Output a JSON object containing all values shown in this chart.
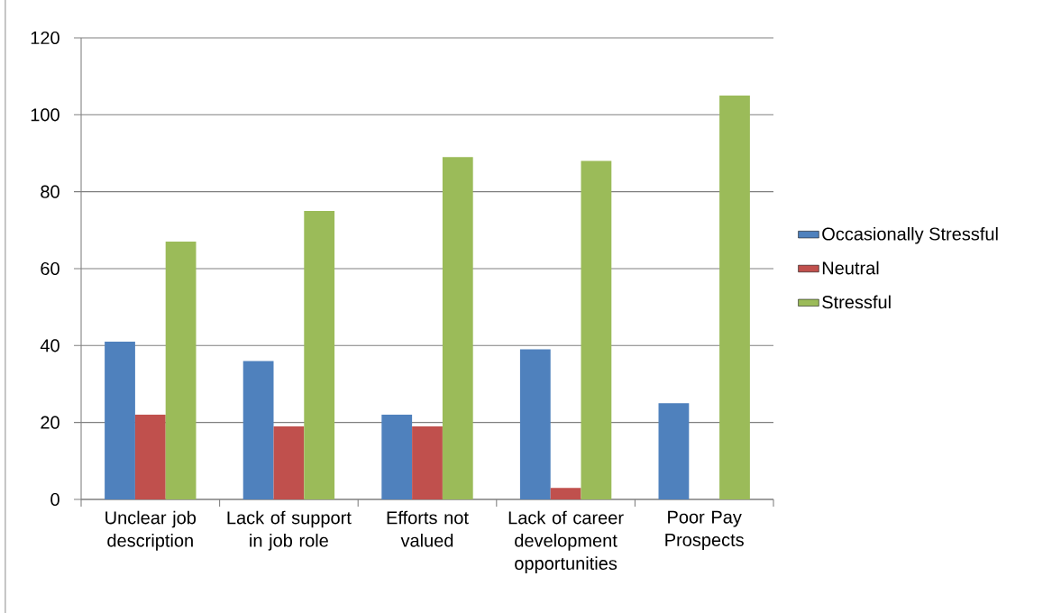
{
  "chart_data": {
    "type": "bar",
    "categories": [
      "Unclear job description",
      "Lack of support in job role",
      "Efforts not valued",
      "Lack of career development opportunities",
      "Poor Pay Prospects"
    ],
    "series": [
      {
        "name": "Occasionally Stressful",
        "color": "#4f81bd",
        "values": [
          41,
          36,
          22,
          39,
          25
        ]
      },
      {
        "name": "Neutral",
        "color": "#c0504d",
        "values": [
          22,
          19,
          19,
          3,
          0
        ]
      },
      {
        "name": "Stressful",
        "color": "#9bbb59",
        "values": [
          67,
          75,
          89,
          88,
          105
        ]
      }
    ],
    "ylim": [
      0,
      120
    ],
    "yticks": [
      0,
      20,
      40,
      60,
      80,
      100,
      120
    ],
    "grid": "y",
    "legend": "right"
  }
}
